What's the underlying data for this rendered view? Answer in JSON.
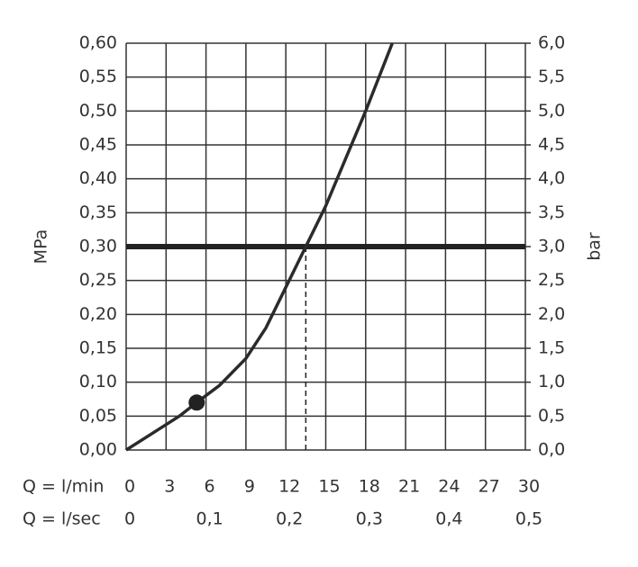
{
  "chart_data": {
    "type": "line",
    "ylabel": "MPa",
    "y2label": "bar",
    "xlabel": "Q = l/min",
    "x2label": "Q = l/sec",
    "xlim": [
      0,
      30
    ],
    "xticks": [
      0,
      3,
      6,
      9,
      12,
      15,
      18,
      21,
      24,
      27,
      30
    ],
    "x2lim": [
      0,
      0.5
    ],
    "x2ticks": [
      0,
      {
        "value": 0.1,
        "label": "0,1"
      },
      {
        "value": 0.2,
        "label": "0,2"
      },
      {
        "value": 0.3,
        "label": "0,3"
      },
      {
        "value": 0.4,
        "label": "0,4"
      },
      {
        "value": 0.5,
        "label": "0,5"
      }
    ],
    "ylim": [
      0,
      0.6
    ],
    "yticks": [
      {
        "value": 0,
        "label": "0,00"
      },
      {
        "value": 0.05,
        "label": "0,05"
      },
      {
        "value": 0.1,
        "label": "0,10"
      },
      {
        "value": 0.15,
        "label": "0,15"
      },
      {
        "value": 0.2,
        "label": "0,20"
      },
      {
        "value": 0.25,
        "label": "0,25"
      },
      {
        "value": 0.3,
        "label": "0,30"
      },
      {
        "value": 0.35,
        "label": "0,35"
      },
      {
        "value": 0.4,
        "label": "0,40"
      },
      {
        "value": 0.45,
        "label": "0,45"
      },
      {
        "value": 0.5,
        "label": "0,50"
      },
      {
        "value": 0.55,
        "label": "0,55"
      },
      {
        "value": 0.6,
        "label": "0,60"
      }
    ],
    "y2lim": [
      0,
      6
    ],
    "y2ticks": [
      {
        "value": 0,
        "label": "0,0"
      },
      {
        "value": 0.5,
        "label": "0,5"
      },
      {
        "value": 1,
        "label": "1,0"
      },
      {
        "value": 1.5,
        "label": "1,5"
      },
      {
        "value": 2,
        "label": "2,0"
      },
      {
        "value": 2.5,
        "label": "2,5"
      },
      {
        "value": 3,
        "label": "3,0"
      },
      {
        "value": 3.5,
        "label": "3,5"
      },
      {
        "value": 4,
        "label": "4,0"
      },
      {
        "value": 4.5,
        "label": "4,5"
      },
      {
        "value": 5,
        "label": "5,0"
      },
      {
        "value": 5.5,
        "label": "5,5"
      },
      {
        "value": 6,
        "label": "6,0"
      }
    ],
    "grid": true,
    "series": [
      {
        "color": "#2b2b2b",
        "x": [
          0,
          2,
          4,
          5.3,
          7,
          9,
          10.5,
          12,
          13.5,
          15,
          18,
          20
        ],
        "values": [
          0,
          0.025,
          0.05,
          0.07,
          0.095,
          0.135,
          0.18,
          0.24,
          0.3,
          0.36,
          0.5,
          0.6
        ]
      }
    ],
    "hline": 0.3,
    "vline": 13.5,
    "marker": {
      "x": 5.3,
      "y": 0.07
    }
  }
}
